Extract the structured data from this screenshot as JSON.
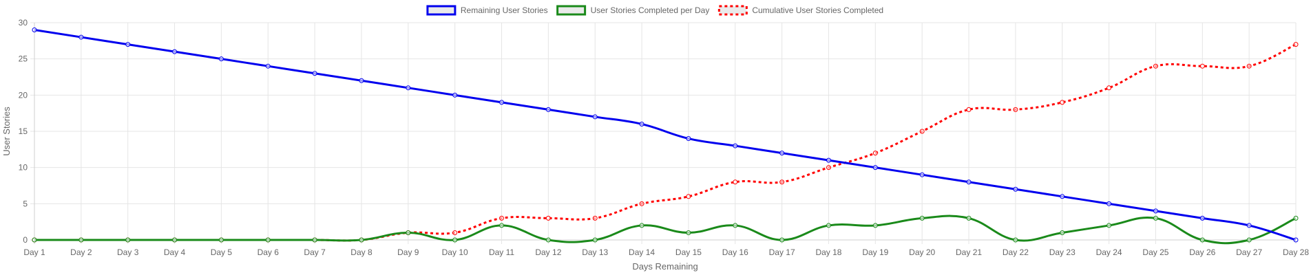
{
  "chart_data": {
    "type": "line",
    "title": "",
    "xlabel": "Days Remaining",
    "ylabel": "User Stories",
    "ylim": [
      0,
      30
    ],
    "yticks": [
      0,
      5,
      10,
      15,
      20,
      25,
      30
    ],
    "grid": true,
    "legend_position": "top-center",
    "categories": [
      "Day 1",
      "Day 2",
      "Day 3",
      "Day 4",
      "Day 5",
      "Day 6",
      "Day 7",
      "Day 8",
      "Day 9",
      "Day 10",
      "Day 11",
      "Day 12",
      "Day 13",
      "Day 14",
      "Day 15",
      "Day 16",
      "Day 17",
      "Day 18",
      "Day 19",
      "Day 20",
      "Day 21",
      "Day 22",
      "Day 23",
      "Day 24",
      "Day 25",
      "Day 26",
      "Day 27",
      "Day 28"
    ],
    "series": [
      {
        "name": "Remaining User Stories",
        "color": "#0000ee",
        "style": "solid",
        "values": [
          29,
          28,
          27,
          26,
          25,
          24,
          23,
          22,
          21,
          20,
          19,
          18,
          17,
          16,
          14,
          13,
          12,
          11,
          10,
          9,
          8,
          7,
          6,
          5,
          4,
          3,
          2,
          0
        ]
      },
      {
        "name": "User Stories Completed per Day",
        "color": "#1a8a1a",
        "style": "solid",
        "values": [
          0,
          0,
          0,
          0,
          0,
          0,
          0,
          0,
          1,
          0,
          2,
          0,
          0,
          2,
          1,
          2,
          0,
          2,
          2,
          3,
          3,
          0,
          1,
          2,
          3,
          0,
          0,
          3
        ]
      },
      {
        "name": "Cumulative User Stories Completed",
        "color": "#ff0000",
        "style": "dotted",
        "values": [
          0,
          0,
          0,
          0,
          0,
          0,
          0,
          0,
          1,
          1,
          3,
          3,
          3,
          5,
          6,
          8,
          8,
          10,
          12,
          15,
          18,
          18,
          19,
          21,
          24,
          24,
          24,
          27
        ]
      }
    ]
  }
}
